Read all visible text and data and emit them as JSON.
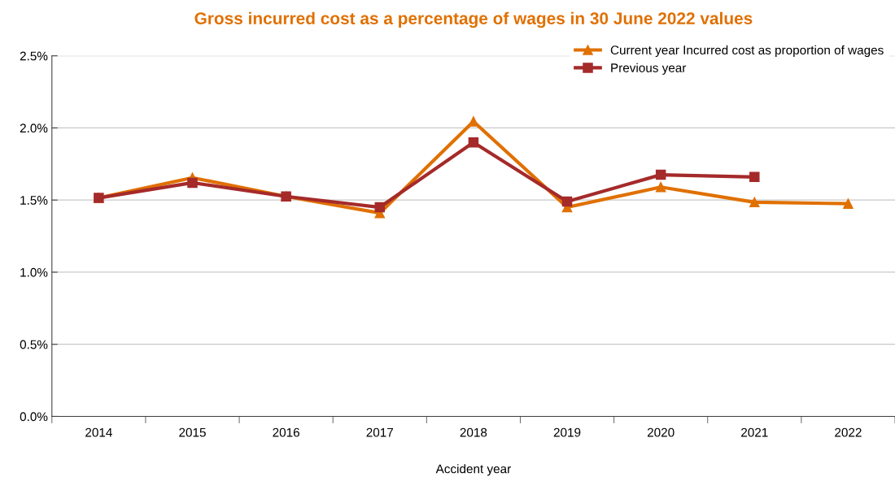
{
  "chart_data": {
    "type": "line",
    "title": "Gross incurred cost as a percentage of wages in 30 June 2022 values",
    "xlabel": "Accident year",
    "categories": [
      "2014",
      "2015",
      "2016",
      "2017",
      "2018",
      "2019",
      "2020",
      "2021",
      "2022"
    ],
    "series": [
      {
        "name": "Current year Incurred cost as proportion of wages",
        "color": "#e07000",
        "marker": "triangle",
        "values": [
          1.515,
          1.655,
          1.525,
          1.41,
          2.045,
          1.45,
          1.59,
          1.485,
          1.475
        ]
      },
      {
        "name": "Previous year",
        "color": "#a52a2a",
        "marker": "square",
        "values": [
          1.515,
          1.62,
          1.525,
          1.45,
          1.9,
          1.49,
          1.675,
          1.66,
          null
        ]
      }
    ],
    "ylim": [
      0,
      2.5
    ],
    "yticks": [
      {
        "value": 0,
        "label": "0.0%"
      },
      {
        "value": 0.5,
        "label": "0.5%"
      },
      {
        "value": 1.0,
        "label": "1.0%"
      },
      {
        "value": 1.5,
        "label": "1.5%"
      },
      {
        "value": 2.0,
        "label": "2.0%"
      },
      {
        "value": 2.5,
        "label": "2.5%"
      }
    ],
    "grid": "y",
    "legend": "top right",
    "line_style": "solid"
  }
}
